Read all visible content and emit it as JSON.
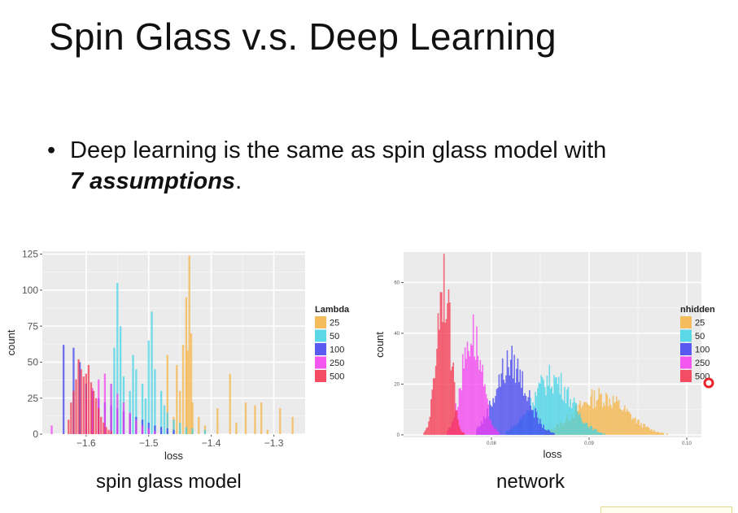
{
  "slide": {
    "title": "Spin Glass v.s. Deep Learning",
    "bullet_symbol": "•",
    "bullet_line1": "Deep learning is the same as spin glass model with",
    "bullet_emphasis": "7 assumptions",
    "bullet_end": "."
  },
  "captions": {
    "left": "spin glass model",
    "right": "network"
  },
  "colors": {
    "panel": "#ebebeb",
    "grid": "#ffffff",
    "cursor_ring": "#e8242a"
  },
  "chart_data": [
    {
      "type": "histogram",
      "xlabel": "loss",
      "ylabel": "count",
      "xlim": [
        -1.67,
        -1.25
      ],
      "ylim": [
        0,
        127
      ],
      "x_ticks": [
        -1.6,
        -1.5,
        -1.4,
        -1.3
      ],
      "x_tick_labels": [
        "−1.6",
        "−1.5",
        "−1.4",
        "−1.3"
      ],
      "y_ticks": [
        0,
        25,
        50,
        75,
        100,
        125
      ],
      "y_tick_labels": [
        "0",
        "25",
        "50",
        "75",
        "100",
        "125"
      ],
      "legend_title": "Lambda",
      "legend_position": "right",
      "grid": true,
      "series": [
        {
          "name": "25",
          "color": "#f5b342",
          "bins": [
            [
              -1.47,
              55
            ],
            [
              -1.46,
              12
            ],
            [
              -1.455,
              48
            ],
            [
              -1.45,
              30
            ],
            [
              -1.445,
              62
            ],
            [
              -1.44,
              95
            ],
            [
              -1.438,
              58
            ],
            [
              -1.435,
              124
            ],
            [
              -1.432,
              70
            ],
            [
              -1.43,
              22
            ],
            [
              -1.42,
              12
            ],
            [
              -1.41,
              6
            ],
            [
              -1.39,
              18
            ],
            [
              -1.37,
              42
            ],
            [
              -1.36,
              8
            ],
            [
              -1.345,
              22
            ],
            [
              -1.33,
              20
            ],
            [
              -1.32,
              22
            ],
            [
              -1.31,
              3
            ],
            [
              -1.29,
              18
            ],
            [
              -1.27,
              12
            ]
          ]
        },
        {
          "name": "50",
          "color": "#3fd3e6",
          "bins": [
            [
              -1.56,
              35
            ],
            [
              -1.555,
              60
            ],
            [
              -1.55,
              105
            ],
            [
              -1.545,
              75
            ],
            [
              -1.54,
              40
            ],
            [
              -1.53,
              30
            ],
            [
              -1.525,
              55
            ],
            [
              -1.52,
              45
            ],
            [
              -1.51,
              35
            ],
            [
              -1.505,
              25
            ],
            [
              -1.5,
              65
            ],
            [
              -1.495,
              85
            ],
            [
              -1.49,
              45
            ],
            [
              -1.48,
              30
            ],
            [
              -1.475,
              20
            ],
            [
              -1.47,
              15
            ],
            [
              -1.46,
              10
            ],
            [
              -1.45,
              8
            ],
            [
              -1.44,
              5
            ],
            [
              -1.43,
              4
            ],
            [
              -1.41,
              3
            ]
          ]
        },
        {
          "name": "100",
          "color": "#3d3ff0",
          "bins": [
            [
              -1.636,
              62
            ],
            [
              -1.62,
              60
            ],
            [
              -1.61,
              50
            ],
            [
              -1.6,
              35
            ],
            [
              -1.59,
              30
            ],
            [
              -1.58,
              25
            ],
            [
              -1.57,
              22
            ],
            [
              -1.56,
              20
            ],
            [
              -1.55,
              18
            ],
            [
              -1.54,
              16
            ],
            [
              -1.53,
              14
            ],
            [
              -1.52,
              12
            ],
            [
              -1.51,
              10
            ],
            [
              -1.5,
              8
            ],
            [
              -1.49,
              6
            ],
            [
              -1.48,
              5
            ],
            [
              -1.47,
              4
            ],
            [
              -1.46,
              3
            ]
          ]
        },
        {
          "name": "250",
          "color": "#f43cf0",
          "bins": [
            [
              -1.655,
              6
            ],
            [
              -1.6,
              25
            ],
            [
              -1.59,
              32
            ],
            [
              -1.58,
              38
            ],
            [
              -1.57,
              42
            ],
            [
              -1.56,
              35
            ],
            [
              -1.55,
              28
            ],
            [
              -1.54,
              22
            ],
            [
              -1.53,
              15
            ],
            [
              -1.52,
              10
            ],
            [
              -1.51,
              6
            ],
            [
              -1.5,
              4
            ],
            [
              -1.49,
              2
            ]
          ]
        },
        {
          "name": "500",
          "color": "#f5304a",
          "bins": [
            [
              -1.628,
              10
            ],
            [
              -1.624,
              22
            ],
            [
              -1.62,
              30
            ],
            [
              -1.616,
              38
            ],
            [
              -1.612,
              52
            ],
            [
              -1.608,
              45
            ],
            [
              -1.604,
              40
            ],
            [
              -1.6,
              42
            ],
            [
              -1.596,
              48
            ],
            [
              -1.592,
              36
            ],
            [
              -1.588,
              30
            ],
            [
              -1.584,
              25
            ],
            [
              -1.58,
              18
            ],
            [
              -1.576,
              12
            ],
            [
              -1.572,
              8
            ],
            [
              -1.568,
              5
            ],
            [
              -1.564,
              3
            ],
            [
              -1.56,
              2
            ]
          ]
        }
      ]
    },
    {
      "type": "histogram",
      "xlabel": "loss",
      "ylabel": "count",
      "xlim": [
        0.071,
        0.1015
      ],
      "ylim": [
        -1,
        72
      ],
      "x_ticks": [
        0.08,
        0.09,
        0.1
      ],
      "x_tick_labels": [
        "0.08",
        "0.09",
        "0.10"
      ],
      "y_ticks": [
        0,
        20,
        40,
        60
      ],
      "y_tick_labels": [
        "0",
        "20",
        "40",
        "60"
      ],
      "legend_title": "nhidden",
      "legend_position": "right",
      "grid": true,
      "series": [
        {
          "name": "25",
          "color": "#f5b342",
          "center": 0.0912,
          "sd": 0.0026,
          "peak": 15,
          "lo": 0.0855,
          "hi": 0.1005
        },
        {
          "name": "50",
          "color": "#3fd3e6",
          "center": 0.0862,
          "sd": 0.002,
          "peak": 22,
          "lo": 0.0815,
          "hi": 0.0925
        },
        {
          "name": "100",
          "color": "#3d3ff0",
          "center": 0.082,
          "sd": 0.0016,
          "peak": 28,
          "lo": 0.0785,
          "hi": 0.088
        },
        {
          "name": "250",
          "color": "#f43cf0",
          "center": 0.078,
          "sd": 0.001,
          "peak": 40,
          "lo": 0.0755,
          "hi": 0.0815
        },
        {
          "name": "500",
          "color": "#f5304a",
          "center": 0.0751,
          "sd": 0.0007,
          "peak": 62,
          "lo": 0.0725,
          "hi": 0.0778
        }
      ]
    }
  ]
}
